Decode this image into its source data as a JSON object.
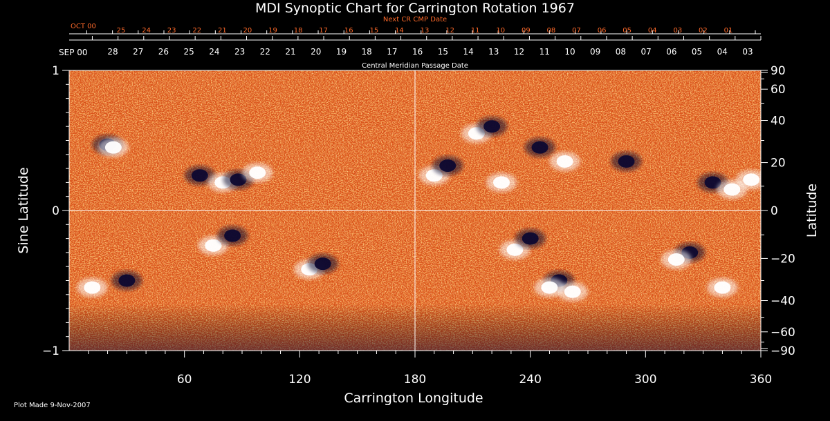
{
  "title": "MDI Synoptic Chart for Carrington Rotation 1967",
  "next_cr_label": "Next CR CMP Date",
  "cmp_label": "Central Meridian Passage Date",
  "month_label_top": "OCT 00",
  "month_label_bottom": "SEP 00",
  "plot_made": "Plot Made  9-Nov-2007",
  "colors": {
    "background": "#000000",
    "field_mid": "#d9521a",
    "positive": "#ffffff",
    "negative": "#0d0830",
    "axis_text": "#ffffff",
    "next_cr_text": "#ff6a2a"
  },
  "chart_data": {
    "type": "heatmap",
    "title": "MDI Synoptic Chart for Carrington Rotation 1967",
    "xlabel": "Carrington Longitude",
    "ylabel": "Sine Latitude",
    "ylabel_right": "Latitude",
    "xlim": [
      0,
      360
    ],
    "ylim": [
      -1,
      1
    ],
    "x_ticks": [
      60,
      120,
      180,
      240,
      300,
      360
    ],
    "y_ticks_left": [
      1,
      0,
      -1
    ],
    "y_ticks_left_labels": [
      "1",
      "0",
      "−1"
    ],
    "y_ticks_right_lat": [
      90,
      60,
      40,
      20,
      0,
      -20,
      -40,
      -60,
      -90
    ],
    "y_ticks_right_labels": [
      "90",
      "60",
      "40",
      "20",
      "0",
      "−20",
      "−40",
      "−60",
      "−90"
    ],
    "top_dates": [
      "28",
      "27",
      "26",
      "25",
      "24",
      "23",
      "22",
      "21",
      "20",
      "19",
      "18",
      "17",
      "16",
      "15",
      "14",
      "13",
      "12",
      "11",
      "10",
      "09",
      "08",
      "07",
      "06",
      "05",
      "04",
      "03"
    ],
    "next_cr_dates": [
      "25",
      "24",
      "23",
      "22",
      "21",
      "20",
      "19",
      "18",
      "17",
      "16",
      "15",
      "14",
      "13",
      "12",
      "11",
      "10",
      "09",
      "08",
      "07",
      "06",
      "05",
      "04",
      "03",
      "02",
      "01"
    ],
    "grid": "crosshair at longitude 180 and sine latitude 0",
    "colorscale": "black/navy (negative) to orange (zero) to white (positive)",
    "regions": [
      {
        "polarity": "negative",
        "lon": 20,
        "sinlat": 0.47
      },
      {
        "polarity": "positive",
        "lon": 23,
        "sinlat": 0.45
      },
      {
        "polarity": "negative",
        "lon": 68,
        "sinlat": 0.25
      },
      {
        "polarity": "positive",
        "lon": 80,
        "sinlat": 0.2
      },
      {
        "polarity": "negative",
        "lon": 88,
        "sinlat": 0.22
      },
      {
        "polarity": "positive",
        "lon": 98,
        "sinlat": 0.27
      },
      {
        "polarity": "positive",
        "lon": 75,
        "sinlat": -0.25
      },
      {
        "polarity": "negative",
        "lon": 85,
        "sinlat": -0.18
      },
      {
        "polarity": "positive",
        "lon": 125,
        "sinlat": -0.42
      },
      {
        "polarity": "negative",
        "lon": 132,
        "sinlat": -0.38
      },
      {
        "polarity": "negative",
        "lon": 30,
        "sinlat": -0.5
      },
      {
        "polarity": "positive",
        "lon": 12,
        "sinlat": -0.55
      },
      {
        "polarity": "positive",
        "lon": 190,
        "sinlat": 0.25
      },
      {
        "polarity": "negative",
        "lon": 197,
        "sinlat": 0.32
      },
      {
        "polarity": "positive",
        "lon": 212,
        "sinlat": 0.55
      },
      {
        "polarity": "negative",
        "lon": 220,
        "sinlat": 0.6
      },
      {
        "polarity": "positive",
        "lon": 225,
        "sinlat": 0.2
      },
      {
        "polarity": "negative",
        "lon": 245,
        "sinlat": 0.45
      },
      {
        "polarity": "positive",
        "lon": 258,
        "sinlat": 0.35
      },
      {
        "polarity": "positive",
        "lon": 232,
        "sinlat": -0.28
      },
      {
        "polarity": "negative",
        "lon": 240,
        "sinlat": -0.2
      },
      {
        "polarity": "negative",
        "lon": 255,
        "sinlat": -0.5
      },
      {
        "polarity": "positive",
        "lon": 250,
        "sinlat": -0.55
      },
      {
        "polarity": "positive",
        "lon": 262,
        "sinlat": -0.58
      },
      {
        "polarity": "negative",
        "lon": 290,
        "sinlat": 0.35
      },
      {
        "polarity": "negative",
        "lon": 335,
        "sinlat": 0.2
      },
      {
        "polarity": "positive",
        "lon": 345,
        "sinlat": 0.15
      },
      {
        "polarity": "positive",
        "lon": 355,
        "sinlat": 0.22
      },
      {
        "polarity": "negative",
        "lon": 323,
        "sinlat": -0.3
      },
      {
        "polarity": "positive",
        "lon": 316,
        "sinlat": -0.35
      },
      {
        "polarity": "positive",
        "lon": 340,
        "sinlat": -0.55
      }
    ]
  }
}
